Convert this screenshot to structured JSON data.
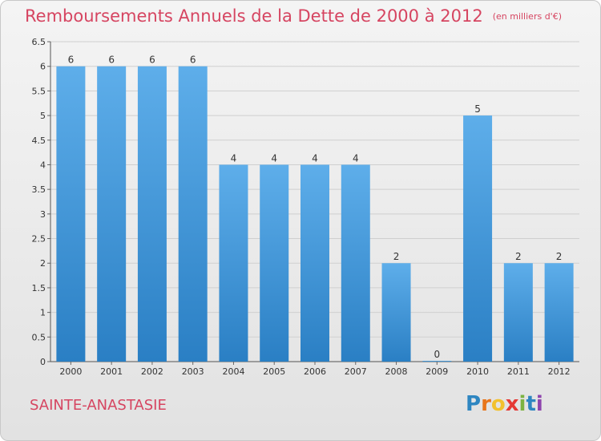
{
  "header": {
    "title": "Remboursements Annuels de la Dette de 2000 à 2012",
    "unit": "(en milliers d'€)"
  },
  "footer": {
    "commune": "SAINTE-ANASTASIE",
    "logo_letters": [
      "P",
      "r",
      "o",
      "x",
      "i",
      "t",
      "i"
    ],
    "logo_colors": [
      "#2e86c1",
      "#e8751a",
      "#f2c12e",
      "#e53935",
      "#7cb342",
      "#2e86c1",
      "#8e44ad"
    ]
  },
  "chart_data": {
    "type": "bar",
    "title": "Remboursements Annuels de la Dette de 2000 à 2012",
    "xlabel": "",
    "ylabel": "",
    "categories": [
      "2000",
      "2001",
      "2002",
      "2003",
      "2004",
      "2005",
      "2006",
      "2007",
      "2008",
      "2009",
      "2010",
      "2011",
      "2012"
    ],
    "values": [
      6,
      6,
      6,
      6,
      4,
      4,
      4,
      4,
      2,
      0,
      5,
      2,
      2
    ],
    "data_labels": [
      "6",
      "6",
      "6",
      "6",
      "4",
      "4",
      "4",
      "4",
      "2",
      "0",
      "5",
      "2",
      "2"
    ],
    "ylim": [
      0,
      6.5
    ],
    "yticks": [
      0,
      0.5,
      1,
      1.5,
      2,
      2.5,
      3,
      3.5,
      4,
      4.5,
      5,
      5.5,
      6,
      6.5
    ],
    "ytick_labels": [
      "0",
      "0.5",
      "1",
      "1.5",
      "2",
      "2.5",
      "3",
      "3.5",
      "4",
      "4.5",
      "5",
      "5.5",
      "6",
      "6.5"
    ],
    "grid": true,
    "bar_color_top": "#5eaeea",
    "bar_color_bottom": "#2a7fc4",
    "label_color": "#333333",
    "grid_color": "#cfcfcf"
  }
}
